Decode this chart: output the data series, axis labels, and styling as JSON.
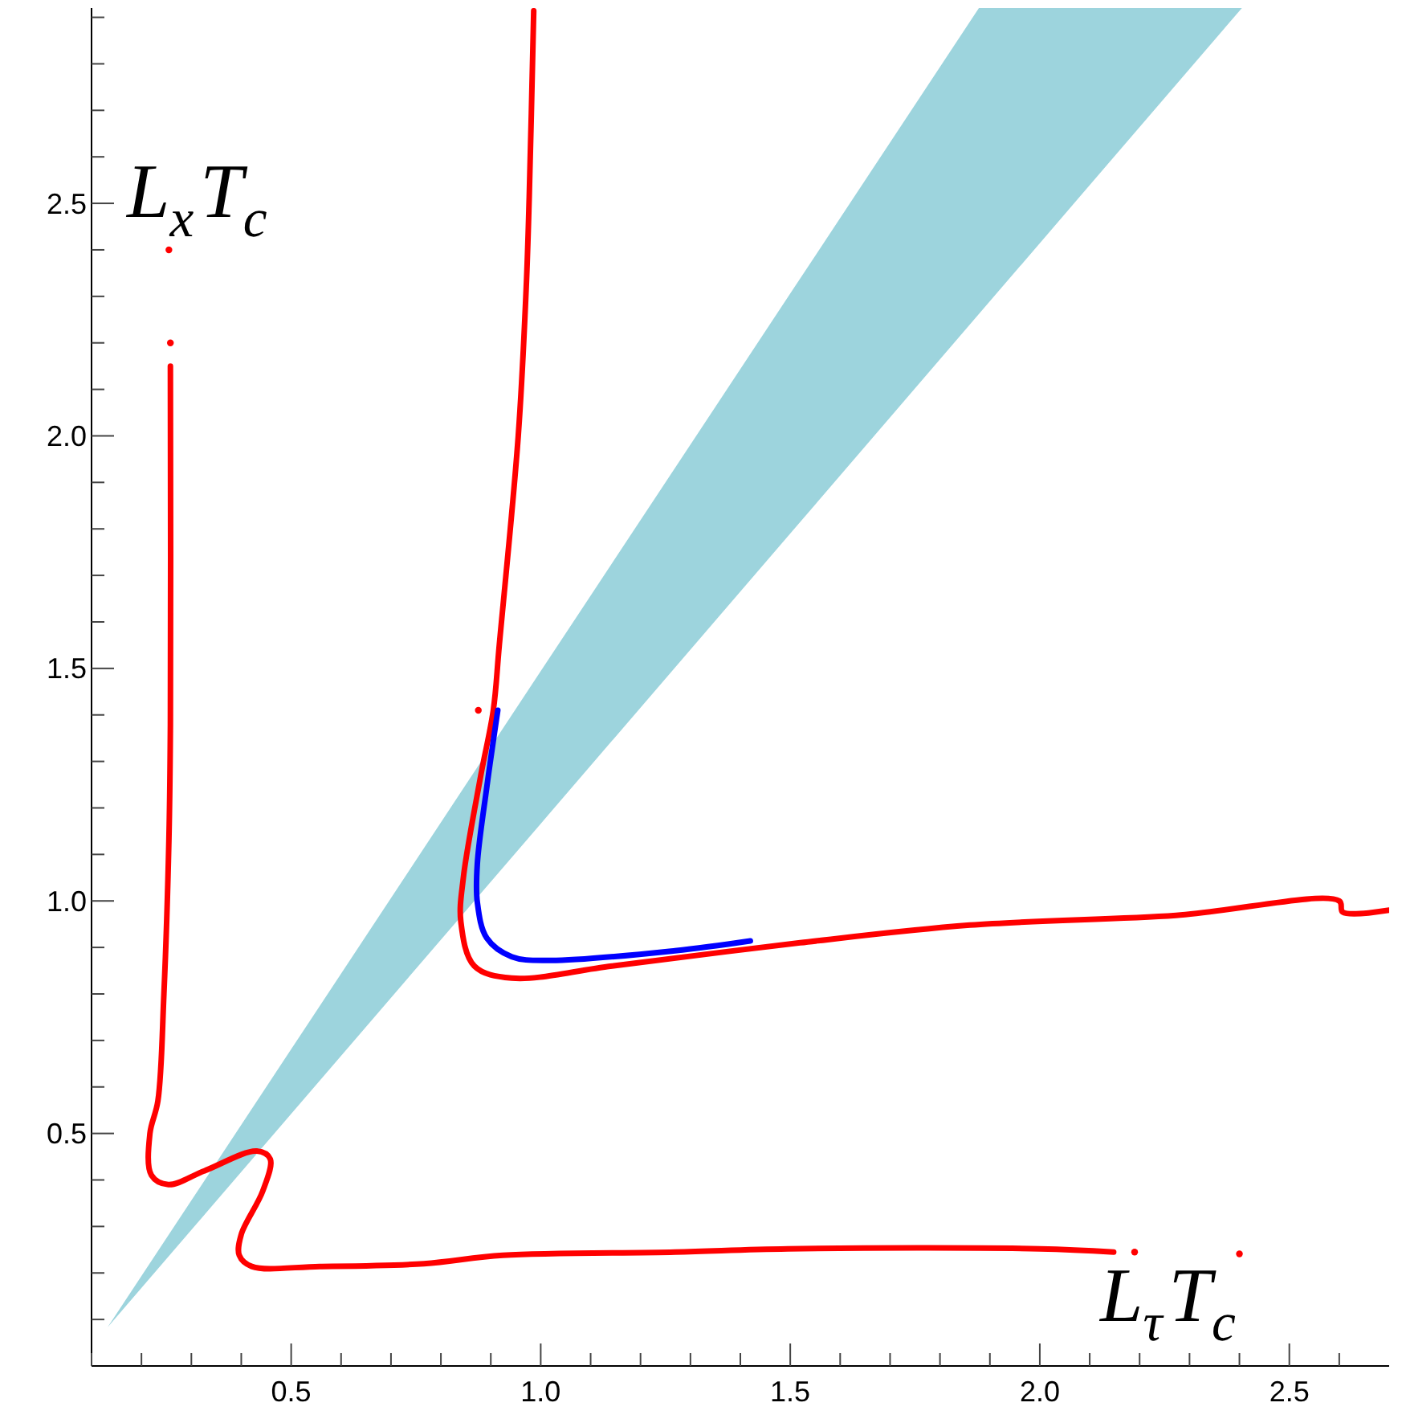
{
  "chart_data": {
    "type": "line",
    "xlabel": "L$_{τ}$T$_{c}$",
    "ylabel": "L$_{x}$T$_{c}$",
    "xlim": [
      0.1,
      2.7
    ],
    "ylim": [
      0,
      2.92
    ],
    "xticks": [
      {
        "value": 0.1,
        "label": null
      },
      {
        "value": 0.2,
        "label": null
      },
      {
        "value": 0.3,
        "label": null
      },
      {
        "value": 0.4,
        "label": null
      },
      0.5,
      {
        "value": 0.6,
        "label": null
      },
      {
        "value": 0.7,
        "label": null
      },
      {
        "value": 0.8,
        "label": null
      },
      {
        "value": 0.9,
        "label": null
      },
      {
        "value": 1.0,
        "label": "1.0"
      },
      {
        "value": 1.1,
        "label": null
      },
      {
        "value": 1.2,
        "label": null
      },
      {
        "value": 1.3,
        "label": null
      },
      {
        "value": 1.4,
        "label": null
      },
      1.5,
      {
        "value": 1.6,
        "label": null
      },
      {
        "value": 1.7,
        "label": null
      },
      {
        "value": 1.8,
        "label": null
      },
      {
        "value": 1.9,
        "label": null
      },
      {
        "value": 2.0,
        "label": "2.0"
      },
      {
        "value": 2.1,
        "label": null
      },
      {
        "value": 2.2,
        "label": null
      },
      {
        "value": 2.3,
        "label": null
      },
      {
        "value": 2.4,
        "label": null
      },
      2.5,
      {
        "value": 2.6,
        "label": null
      }
    ],
    "yticks": [
      {
        "value": 0.1,
        "label": null
      },
      {
        "value": 0.2,
        "label": null
      },
      {
        "value": 0.3,
        "label": null
      },
      {
        "value": 0.4,
        "label": null
      },
      0.5,
      {
        "value": 0.6,
        "label": null
      },
      {
        "value": 0.7,
        "label": null
      },
      {
        "value": 0.8,
        "label": null
      },
      {
        "value": 0.9,
        "label": null
      },
      {
        "value": 1.0,
        "label": "1.0"
      },
      {
        "value": 1.1,
        "label": null
      },
      {
        "value": 1.2,
        "label": null
      },
      {
        "value": 1.3,
        "label": null
      },
      {
        "value": 1.4,
        "label": null
      },
      1.5,
      {
        "value": 1.6,
        "label": null
      },
      {
        "value": 1.7,
        "label": null
      },
      {
        "value": 1.8,
        "label": null
      },
      {
        "value": 1.9,
        "label": null
      },
      {
        "value": 2.0,
        "label": "2.0"
      },
      {
        "value": 2.1,
        "label": null
      },
      {
        "value": 2.2,
        "label": null
      },
      {
        "value": 2.3,
        "label": null
      },
      {
        "value": 2.4,
        "label": null
      },
      2.5,
      {
        "value": 2.6,
        "label": null
      },
      {
        "value": 2.7,
        "label": null
      },
      {
        "value": 2.8,
        "label": null
      },
      {
        "value": 2.9,
        "label": null
      }
    ],
    "grid": false,
    "series": [
      {
        "color": "#9dd4dd",
        "x": [
          0.132,
          0.5,
          1.0,
          1.5,
          1.878,
          2.405
        ],
        "values": [
          null,
          null,
          null,
          null,
          null,
          null
        ],
        "lower": [
          0.083,
          0.542,
          1.166,
          1.79,
          2.262,
          2.92
        ],
        "upper": [
          0.083,
          0.681,
          1.494,
          2.306,
          2.92,
          2.92
        ]
      },
      {
        "color": "#ff0000",
        "x": [
          0.258,
          0.258,
          0.255,
          0.245,
          0.233,
          0.217,
          0.22,
          0.254,
          0.327,
          0.431,
          0.458,
          0.443,
          0.4,
          0.396,
          0.421,
          0.557,
          0.766,
          0.924,
          1.269,
          1.495,
          2.0,
          2.148
        ],
        "values": [
          2.15,
          1.38,
          1.13,
          0.8,
          0.57,
          0.5,
          0.41,
          0.39,
          0.42,
          0.462,
          0.445,
          0.376,
          0.283,
          0.238,
          0.214,
          0.214,
          0.22,
          0.238,
          0.245,
          0.252,
          0.252,
          0.245
        ]
      },
      {
        "color": "#ff0000",
        "x": [
          0.986,
          0.977,
          0.971,
          0.955,
          0.917,
          0.905,
          0.88,
          0.845,
          0.84,
          0.867,
          0.942,
          1.143,
          1.52,
          1.86,
          2.273,
          2.6,
          2.607,
          2.7
        ],
        "values": [
          2.914,
          2.514,
          2.32,
          2.0,
          1.55,
          1.41,
          1.27,
          1.05,
          0.955,
          0.86,
          0.834,
          0.86,
          0.91,
          0.948,
          0.969,
          1.0,
          0.976,
          0.98
        ]
      },
      {
        "color": "#0000ff",
        "x": [
          0.914,
          0.892,
          0.873,
          0.873,
          0.892,
          0.942,
          1.017,
          1.269,
          1.42
        ],
        "values": [
          1.41,
          1.245,
          1.08,
          0.997,
          0.92,
          0.88,
          0.872,
          0.893,
          0.914
        ]
      },
      {
        "type": "scatter",
        "marker": "circle",
        "color": "#ff0000",
        "x": [
          0.255,
          0.258,
          0.875,
          2.19,
          2.4
        ],
        "values": [
          2.4,
          2.2,
          1.41,
          0.245,
          0.241
        ]
      }
    ]
  }
}
